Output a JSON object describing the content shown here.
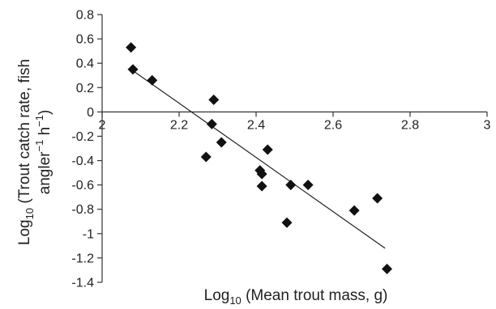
{
  "chart_data": {
    "type": "scatter",
    "title": "",
    "xlabel": {
      "main": "Log",
      "sub": "10",
      "rest": " (Mean trout mass, g)"
    },
    "ylabel": {
      "line1": {
        "main": "Log",
        "sub": "10",
        "rest": " (Trout catch rate, fish"
      },
      "line2": {
        "pre": "angler",
        "sup1": "−1",
        "mid": " h",
        "sup2": "−1",
        "post": ")"
      }
    },
    "xlim": [
      2,
      3
    ],
    "ylim": [
      -1.4,
      0.8
    ],
    "x_ticks": [
      "2",
      "2.2",
      "2.4",
      "2.6",
      "2.8",
      "3"
    ],
    "x_tick_values": [
      2,
      2.2,
      2.4,
      2.6,
      2.8,
      3
    ],
    "y_ticks": [
      "0.8",
      "0.6",
      "0.4",
      "0.2",
      "0",
      "-0.2",
      "-0.4",
      "-0.6",
      "-0.8",
      "-1",
      "-1.2",
      "-1.4"
    ],
    "y_tick_values": [
      0.8,
      0.6,
      0.4,
      0.2,
      0,
      -0.2,
      -0.4,
      -0.6,
      -0.8,
      -1,
      -1.2,
      -1.4
    ],
    "grid": false,
    "x_axis_crosses_at_y": 0,
    "point_color": "#111111",
    "points": [
      {
        "x": 2.075,
        "y": 0.53
      },
      {
        "x": 2.08,
        "y": 0.35
      },
      {
        "x": 2.13,
        "y": 0.26
      },
      {
        "x": 2.29,
        "y": 0.1
      },
      {
        "x": 2.285,
        "y": -0.1
      },
      {
        "x": 2.31,
        "y": -0.25
      },
      {
        "x": 2.27,
        "y": -0.37
      },
      {
        "x": 2.41,
        "y": -0.48
      },
      {
        "x": 2.415,
        "y": -0.51
      },
      {
        "x": 2.43,
        "y": -0.31
      },
      {
        "x": 2.415,
        "y": -0.61
      },
      {
        "x": 2.49,
        "y": -0.6
      },
      {
        "x": 2.48,
        "y": -0.91
      },
      {
        "x": 2.535,
        "y": -0.6
      },
      {
        "x": 2.655,
        "y": -0.81
      },
      {
        "x": 2.715,
        "y": -0.71
      },
      {
        "x": 2.74,
        "y": -1.29
      }
    ],
    "trendline": {
      "x1": 2.075,
      "y1": 0.35,
      "x2": 2.735,
      "y2": -1.12
    }
  }
}
